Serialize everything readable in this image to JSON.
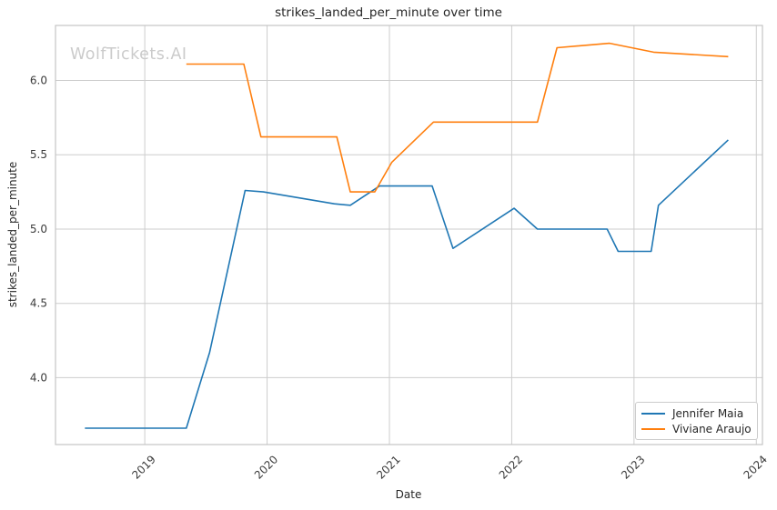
{
  "figure": {
    "watermark": "WolfTickets.AI",
    "background": "#ffffff"
  },
  "colors": {
    "grid": "#cdcdcd",
    "spine": "#c4c4c4",
    "text": "#262626",
    "tick_text": "#3b3b3b",
    "watermark": "#cbcbcb"
  },
  "chart_data": {
    "type": "line",
    "title": "strikes_landed_per_minute over time",
    "xlabel": "Date",
    "ylabel": "strikes_landed_per_minute",
    "xlim": [
      2018.27,
      2024.05
    ],
    "ylim": [
      3.55,
      6.37
    ],
    "xticks": [
      2019,
      2020,
      2021,
      2022,
      2023,
      2024
    ],
    "xtick_labels": [
      "2019",
      "2020",
      "2021",
      "2022",
      "2023",
      "2024"
    ],
    "yticks": [
      4.0,
      4.5,
      5.0,
      5.5,
      6.0
    ],
    "ytick_labels": [
      "4.0",
      "4.5",
      "5.0",
      "5.5",
      "6.0"
    ],
    "grid": true,
    "legend_position": "lower right",
    "series": [
      {
        "name": "Jennifer Maia",
        "color": "#1f77b4",
        "points": [
          [
            2018.51,
            3.66
          ],
          [
            2019.34,
            3.66
          ],
          [
            2019.53,
            4.17
          ],
          [
            2019.82,
            5.26
          ],
          [
            2019.97,
            5.25
          ],
          [
            2020.55,
            5.17
          ],
          [
            2020.68,
            5.16
          ],
          [
            2020.92,
            5.29
          ],
          [
            2021.35,
            5.29
          ],
          [
            2021.52,
            4.87
          ],
          [
            2022.02,
            5.14
          ],
          [
            2022.21,
            5.0
          ],
          [
            2022.78,
            5.0
          ],
          [
            2022.87,
            4.85
          ],
          [
            2023.14,
            4.85
          ],
          [
            2023.2,
            5.16
          ],
          [
            2023.77,
            5.6
          ]
        ]
      },
      {
        "name": "Viviane Araujo",
        "color": "#ff7f0e",
        "points": [
          [
            2019.34,
            6.11
          ],
          [
            2019.81,
            6.11
          ],
          [
            2019.95,
            5.62
          ],
          [
            2020.57,
            5.62
          ],
          [
            2020.68,
            5.25
          ],
          [
            2020.88,
            5.25
          ],
          [
            2021.02,
            5.45
          ],
          [
            2021.36,
            5.72
          ],
          [
            2022.21,
            5.72
          ],
          [
            2022.37,
            6.22
          ],
          [
            2022.8,
            6.25
          ],
          [
            2023.16,
            6.19
          ],
          [
            2023.77,
            6.16
          ]
        ]
      }
    ]
  }
}
